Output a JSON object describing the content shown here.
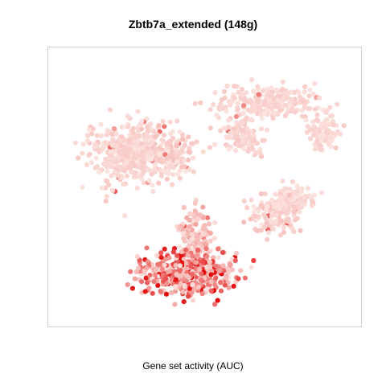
{
  "chart_data": {
    "type": "scatter",
    "title": "Zbtb7a_extended (148g)",
    "xlabel": "Gene set activity (AUC)",
    "ylabel": "",
    "grid": false,
    "legend": "none",
    "axes_visible": false,
    "color_scale": {
      "low": "#fbe4e0",
      "high": "#e00000"
    },
    "note_on_points": "t-SNE embedding of cells colored by AUC; upper clusters low activity, bottom cluster high activity",
    "clusters": [
      {
        "cx": 0.26,
        "cy": 0.62,
        "sx": 0.12,
        "sy": 0.1,
        "n": 420,
        "level": 0.08
      },
      {
        "cx": 0.4,
        "cy": 0.62,
        "sx": 0.06,
        "sy": 0.07,
        "n": 120,
        "level": 0.1
      },
      {
        "cx": 0.7,
        "cy": 0.8,
        "sx": 0.14,
        "sy": 0.05,
        "n": 260,
        "level": 0.07
      },
      {
        "cx": 0.88,
        "cy": 0.7,
        "sx": 0.05,
        "sy": 0.06,
        "n": 90,
        "level": 0.07
      },
      {
        "cx": 0.62,
        "cy": 0.68,
        "sx": 0.06,
        "sy": 0.06,
        "n": 110,
        "level": 0.08
      },
      {
        "cx": 0.78,
        "cy": 0.46,
        "sx": 0.06,
        "sy": 0.04,
        "n": 110,
        "level": 0.08
      },
      {
        "cx": 0.72,
        "cy": 0.4,
        "sx": 0.07,
        "sy": 0.06,
        "n": 120,
        "level": 0.1
      },
      {
        "cx": 0.47,
        "cy": 0.32,
        "sx": 0.05,
        "sy": 0.09,
        "n": 150,
        "level": 0.18
      },
      {
        "cx": 0.44,
        "cy": 0.19,
        "sx": 0.13,
        "sy": 0.07,
        "n": 520,
        "level": 0.45
      }
    ]
  }
}
